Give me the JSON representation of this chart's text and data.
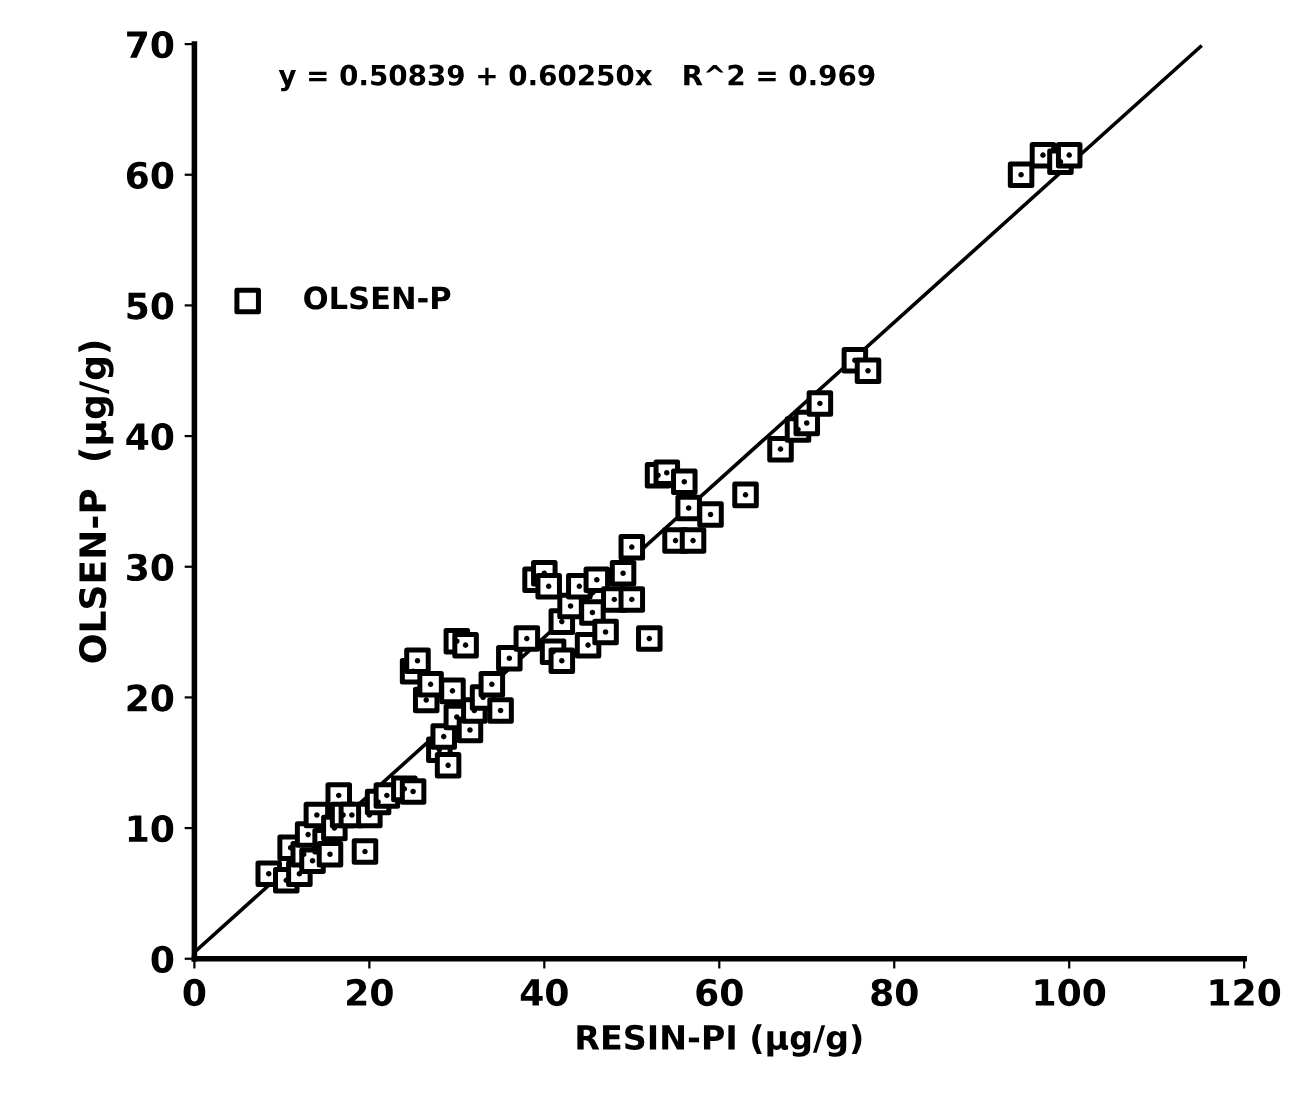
{
  "chart_data": {
    "type": "scatter",
    "xlabel": "RESIN-PI (µg/g)",
    "ylabel": "OLSEN-P  (µg/g)",
    "annotations": [
      "y = 0.50839 + 0.60250x   R^2 = 0.969"
    ],
    "xlim": [
      0,
      120
    ],
    "xticks": [
      0,
      20,
      40,
      60,
      80,
      100,
      120
    ],
    "ylim": [
      0,
      70
    ],
    "yticks": [
      0,
      10,
      20,
      30,
      40,
      50,
      60,
      70
    ],
    "grid": false,
    "legend": "top left",
    "series": [
      {
        "name": "OLSEN-P",
        "color": "#000000",
        "marker": "square",
        "x": [
          8.5,
          10.5,
          11,
          12,
          12.5,
          13,
          13.5,
          14,
          15,
          15.5,
          16,
          16.5,
          17,
          18,
          19.5,
          20,
          21,
          22,
          24,
          25,
          25,
          25.5,
          26.5,
          27,
          28,
          28.5,
          29,
          29.5,
          30,
          30,
          31,
          31.5,
          32,
          33,
          34,
          35,
          36,
          38,
          39,
          40,
          40.5,
          41,
          42,
          42,
          43,
          44,
          45,
          45.5,
          46,
          47,
          48,
          49,
          50,
          50,
          52,
          53,
          54,
          55,
          56,
          56.5,
          57,
          59,
          63,
          67,
          69,
          70,
          71.5,
          75.5,
          77,
          94.5,
          97,
          99,
          100
        ],
        "values": [
          6.5,
          6,
          8.5,
          6.5,
          8,
          9.5,
          7.5,
          11,
          9,
          8,
          10,
          12.5,
          11,
          11,
          8.2,
          11,
          12,
          12.5,
          13,
          12.8,
          22,
          22.8,
          19.8,
          21,
          16,
          17,
          14.8,
          20.5,
          18.5,
          24.3,
          24,
          17.5,
          19,
          20,
          21,
          19,
          23,
          24.5,
          29,
          29.5,
          28.5,
          23.5,
          22.8,
          25.8,
          27,
          28.5,
          24,
          26.5,
          29,
          25,
          27.5,
          29.5,
          31.5,
          27.5,
          24.5,
          37,
          37.2,
          32,
          36.5,
          34.5,
          32,
          34,
          35.5,
          39,
          40.5,
          41,
          42.5,
          45.8,
          45,
          60,
          61.5,
          61,
          61.5
        ]
      },
      {
        "type": "line",
        "color": "#000000",
        "line_style": "solid",
        "marker": "none",
        "x": [
          0,
          115
        ],
        "values": [
          0.5,
          69.8
        ]
      }
    ]
  }
}
